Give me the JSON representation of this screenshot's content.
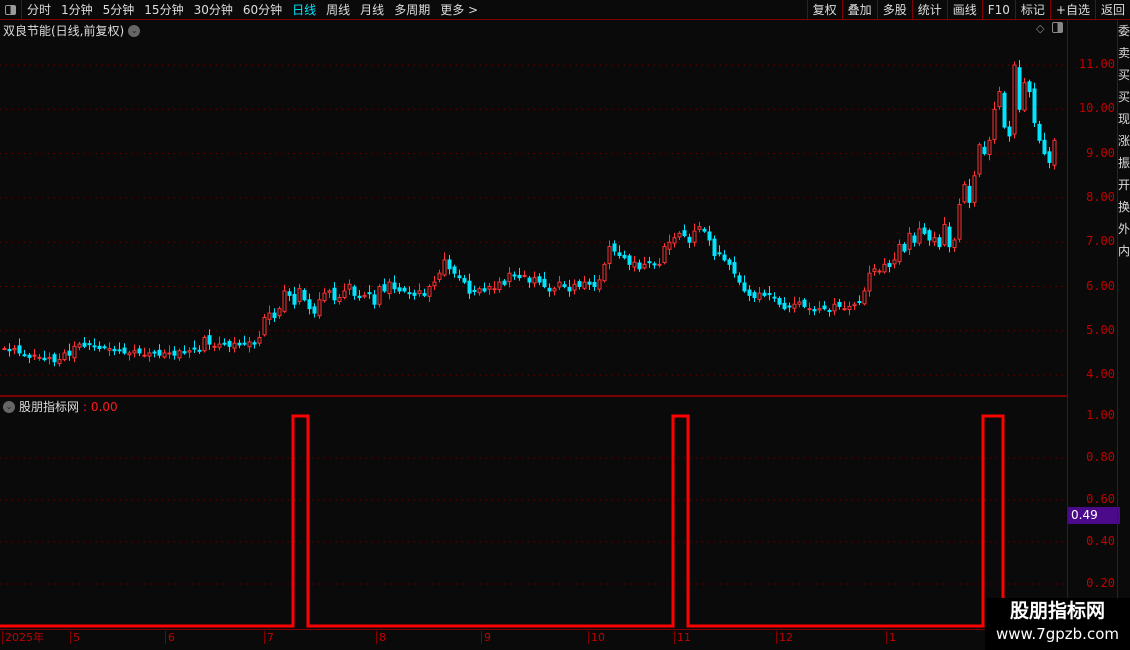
{
  "toolbar": {
    "periods": [
      "分时",
      "1分钟",
      "5分钟",
      "15分钟",
      "30分钟",
      "60分钟",
      "日线",
      "周线",
      "月线",
      "多周期",
      "更多 >"
    ],
    "active_period": "日线",
    "right_buttons": [
      "复权",
      "叠加",
      "多股",
      "统计",
      "画线",
      "F10",
      "标记",
      "+自选",
      "返回"
    ]
  },
  "stock": {
    "title": "双良节能(日线,前复权)"
  },
  "price_axis": {
    "labels": [
      "11.00",
      "10.00",
      "9.00",
      "8.00",
      "7.00",
      "6.00",
      "5.00",
      "4.00"
    ]
  },
  "indicator": {
    "name": "股朋指标网",
    "value": ": 0.00",
    "axis_labels": [
      "1.00",
      "0.80",
      "0.60",
      "0.40",
      "0.20"
    ],
    "current_value": "0.49",
    "spike_bars": [
      58,
      59,
      60,
      134,
      135,
      136,
      196,
      197,
      198,
      199
    ]
  },
  "date_axis": {
    "labels": [
      "2025年",
      "5",
      "6",
      "7",
      "8",
      "9",
      "10",
      "11",
      "12",
      "1"
    ]
  },
  "right_strip": [
    "委",
    "卖",
    "买",
    "买",
    "现",
    "涨",
    "振",
    "开",
    "换",
    "外",
    "内"
  ],
  "watermark": {
    "line1": "股朋指标网",
    "line2": "www.7gpzb.com"
  },
  "colors": {
    "up": "#ff3333",
    "down": "#00e5ff",
    "indicator": "#ff0000",
    "axis": "#c00000",
    "grid": "#800000"
  },
  "chart_data": {
    "type": "candlestick",
    "ylim": [
      3.6,
      11.6
    ],
    "closes": [
      4.6,
      4.55,
      4.6,
      4.5,
      4.45,
      4.4,
      4.45,
      4.4,
      4.35,
      4.4,
      4.3,
      4.35,
      4.5,
      4.45,
      4.65,
      4.7,
      4.65,
      4.7,
      4.65,
      4.6,
      4.62,
      4.6,
      4.55,
      4.55,
      4.5,
      4.5,
      4.55,
      4.5,
      4.45,
      4.5,
      4.5,
      4.45,
      4.5,
      4.5,
      4.45,
      4.55,
      4.5,
      4.55,
      4.6,
      4.55,
      4.85,
      4.7,
      4.65,
      4.7,
      4.7,
      4.65,
      4.72,
      4.68,
      4.7,
      4.75,
      4.7,
      4.85,
      5.3,
      5.4,
      5.3,
      5.5,
      5.9,
      5.8,
      5.6,
      5.95,
      5.7,
      5.5,
      5.4,
      5.7,
      5.85,
      5.9,
      5.7,
      5.75,
      5.9,
      6.05,
      5.8,
      5.75,
      5.8,
      5.85,
      5.6,
      6.0,
      5.9,
      6.1,
      5.95,
      5.9,
      5.9,
      5.85,
      5.8,
      5.9,
      5.8,
      6.0,
      6.1,
      6.3,
      6.6,
      6.4,
      6.3,
      6.2,
      6.1,
      5.85,
      5.9,
      5.95,
      5.9,
      6.0,
      5.95,
      6.1,
      6.05,
      6.3,
      6.25,
      6.2,
      6.25,
      6.1,
      6.2,
      6.1,
      6.0,
      5.9,
      5.95,
      6.1,
      6.0,
      5.9,
      6.05,
      6.0,
      6.1,
      6.05,
      6.0,
      6.15,
      6.5,
      6.9,
      6.8,
      6.7,
      6.65,
      6.5,
      6.55,
      6.4,
      6.5,
      6.55,
      6.5,
      6.5,
      6.9,
      7.0,
      7.1,
      7.2,
      7.15,
      7.0,
      7.25,
      7.35,
      7.25,
      7.05,
      6.7,
      6.75,
      6.6,
      6.5,
      6.3,
      6.1,
      5.9,
      5.8,
      5.75,
      5.85,
      5.8,
      5.82,
      5.75,
      5.6,
      5.5,
      5.55,
      5.6,
      5.65,
      5.55,
      5.5,
      5.45,
      5.5,
      5.5,
      5.45,
      5.6,
      5.55,
      5.5,
      5.55,
      5.6,
      5.65,
      5.9,
      6.3,
      6.4,
      6.35,
      6.5,
      6.45,
      6.6,
      6.95,
      6.8,
      7.2,
      7.0,
      7.3,
      7.2,
      7.05,
      7.1,
      6.9,
      7.4,
      6.9,
      7.05,
      7.85,
      8.3,
      7.9,
      8.5,
      9.2,
      9.0,
      9.3,
      10.0,
      10.4,
      9.6,
      9.4,
      11.0,
      10.0,
      10.6,
      10.4,
      9.7,
      9.3,
      9.0,
      8.8,
      9.3
    ]
  }
}
